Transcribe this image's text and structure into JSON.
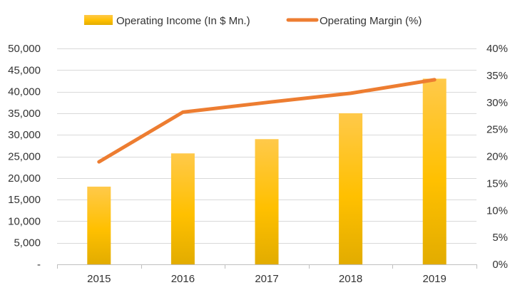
{
  "chart_data": {
    "type": "bar",
    "categories": [
      "2015",
      "2016",
      "2017",
      "2018",
      "2019"
    ],
    "series": [
      {
        "name": "Operating Income (In $ Mn.)",
        "type": "bar",
        "axis": "left",
        "values": [
          18000,
          25700,
          29000,
          35000,
          43000
        ],
        "color": "#FFC000"
      },
      {
        "name": "Operating Margin (%)",
        "type": "line",
        "axis": "right",
        "values": [
          19,
          28.2,
          30,
          31.7,
          34.2
        ],
        "color": "#ED7D31"
      }
    ],
    "y_left": {
      "range": [
        0,
        50000
      ],
      "ticks": [
        0,
        5000,
        10000,
        15000,
        20000,
        25000,
        30000,
        35000,
        40000,
        45000,
        50000
      ],
      "tick_labels": [
        "-",
        "5,000",
        "10,000",
        "15,000",
        "20,000",
        "25,000",
        "30,000",
        "35,000",
        "40,000",
        "45,000",
        "50,000"
      ]
    },
    "y_right": {
      "range": [
        0,
        40
      ],
      "ticks": [
        0,
        5,
        10,
        15,
        20,
        25,
        30,
        35,
        40
      ],
      "tick_labels": [
        "0%",
        "5%",
        "10%",
        "15%",
        "20%",
        "25%",
        "30%",
        "35%",
        "40%"
      ]
    },
    "grid": true,
    "legend": "top"
  }
}
